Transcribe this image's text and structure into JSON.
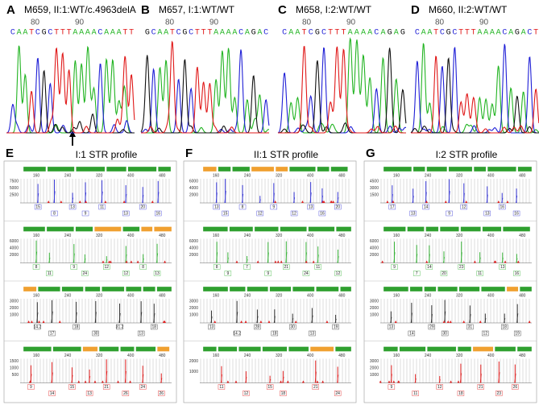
{
  "chromatograms": [
    {
      "letter": "A",
      "title": "M659, II:1:WT/c.4963delA",
      "positions": [
        "80",
        "90"
      ],
      "sequence": [
        "C",
        "A",
        "A",
        "T",
        "C",
        "G",
        "C",
        "T",
        "T",
        "T",
        "A",
        "A",
        "A",
        "A",
        "C",
        "A",
        "A",
        "A",
        "T",
        "T"
      ]
    },
    {
      "letter": "B",
      "title": "M657, I:1:WT/WT",
      "positions": [
        "80",
        "90"
      ],
      "sequence": [
        "G",
        "C",
        "A",
        "A",
        "T",
        "C",
        "G",
        "C",
        "T",
        "T",
        "T",
        "A",
        "A",
        "A",
        "A",
        "C",
        "A",
        "G",
        "A",
        "C"
      ]
    },
    {
      "letter": "C",
      "title": "M658, I:2:WT/WT",
      "positions": [
        "80",
        "90"
      ],
      "sequence": [
        "C",
        "A",
        "A",
        "T",
        "C",
        "G",
        "C",
        "T",
        "T",
        "T",
        "A",
        "A",
        "A",
        "A",
        "C",
        "A",
        "G",
        "A",
        "G"
      ]
    },
    {
      "letter": "D",
      "title": "M660, II:2:WT/WT",
      "positions": [
        "80",
        "90"
      ],
      "sequence": [
        "C",
        "A",
        "A",
        "T",
        "C",
        "G",
        "C",
        "T",
        "T",
        "T",
        "A",
        "A",
        "A",
        "A",
        "C",
        "A",
        "G",
        "A",
        "C",
        "T"
      ]
    }
  ],
  "str_panels": [
    {
      "letter": "E",
      "title": "I:1 STR profile",
      "x_ticks": [
        "160",
        "240",
        "320",
        "400",
        "480"
      ],
      "rows": [
        {
          "y_ticks": [
            "7500",
            "5000",
            "2500"
          ],
          "alleles": [
            "15",
            "8",
            "13",
            "9",
            "11",
            "13",
            "20",
            "16"
          ]
        },
        {
          "y_ticks": [
            "6000",
            "4000",
            "2000"
          ],
          "alleles": [
            "8",
            "11",
            "9",
            "24",
            "12",
            "12",
            "8",
            "13"
          ]
        },
        {
          "y_ticks": [
            "3000",
            "2000",
            "1000"
          ],
          "alleles": [
            "14.2",
            "17",
            "18",
            "30",
            "31.2",
            "13",
            "18"
          ]
        },
        {
          "y_ticks": [
            "1500",
            "1000",
            "500"
          ],
          "alleles": [
            "9",
            "14",
            "15",
            "13",
            "21",
            "26",
            "24",
            "26"
          ]
        }
      ]
    },
    {
      "letter": "F",
      "title": "II:1 STR profile",
      "x_ticks": [
        "160",
        "240",
        "320",
        "400",
        "480"
      ],
      "rows": [
        {
          "y_ticks": [
            "6000",
            "4000",
            "2000"
          ],
          "alleles": [
            "13",
            "15",
            "8",
            "12",
            "9",
            "12",
            "13",
            "16",
            "20"
          ]
        },
        {
          "y_ticks": [
            "6000",
            "4000",
            "2000"
          ],
          "alleles": [
            "8",
            "9",
            "7",
            "9",
            "21",
            "24",
            "11",
            "12"
          ]
        },
        {
          "y_ticks": [
            "3000",
            "2000",
            "1000"
          ],
          "alleles": [
            "13",
            "14.2",
            "28",
            "18",
            "30",
            "13",
            "19"
          ]
        },
        {
          "y_ticks": [
            "2000",
            "1000"
          ],
          "alleles": [
            "11",
            "12",
            "15",
            "18",
            "21",
            "24"
          ]
        }
      ]
    },
    {
      "letter": "G",
      "title": "I:2 STR profile",
      "x_ticks": [
        "160",
        "240",
        "320",
        "400",
        "480"
      ],
      "rows": [
        {
          "y_ticks": [
            "4500",
            "3000",
            "1500"
          ],
          "alleles": [
            "17",
            "13",
            "14",
            "9",
            "12",
            "13",
            "16",
            "16"
          ]
        },
        {
          "y_ticks": [
            "6000",
            "4000",
            "2000"
          ],
          "alleles": [
            "9",
            "7",
            "14",
            "20",
            "23",
            "11",
            "13",
            "16"
          ]
        },
        {
          "y_ticks": [
            "3000",
            "2000",
            "1000"
          ],
          "alleles": [
            "13",
            "14",
            "29",
            "30",
            "31",
            "12",
            "18",
            "19"
          ]
        },
        {
          "y_ticks": [
            "3000",
            "2000",
            "1000"
          ],
          "alleles": [
            "9",
            "11",
            "12",
            "18",
            "21",
            "23",
            "26"
          ]
        }
      ]
    }
  ]
}
